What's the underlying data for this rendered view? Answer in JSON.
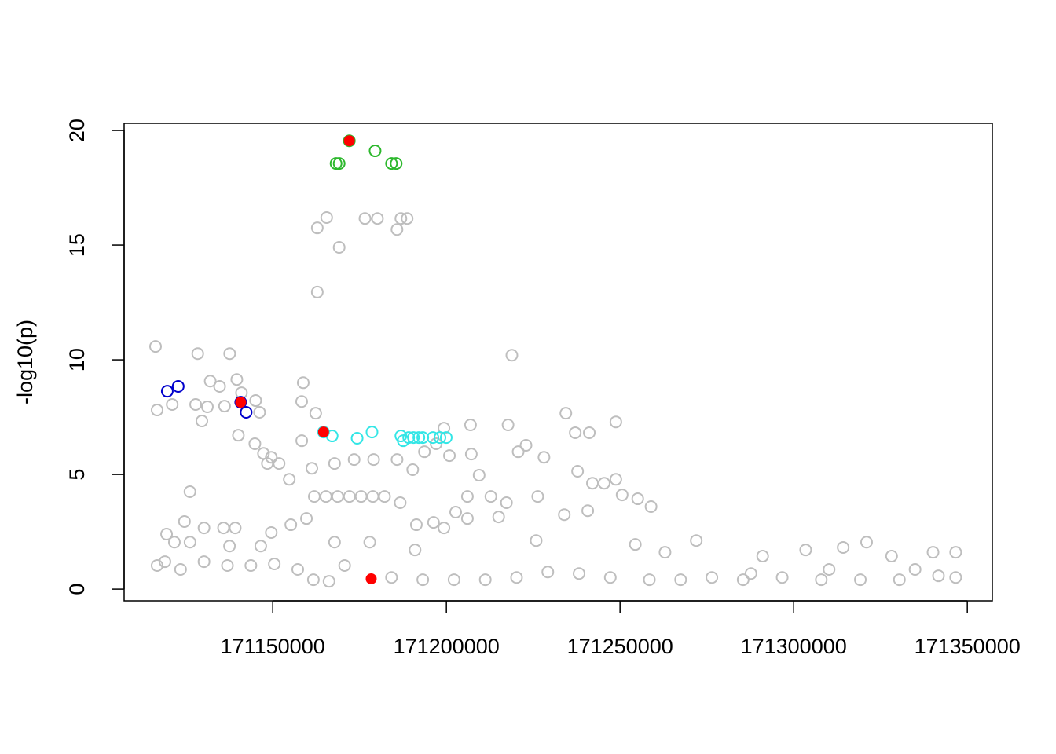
{
  "chart_data": {
    "type": "scatter",
    "ylabel": "-log10(p)",
    "xlim": [
      171107200,
      171357200
    ],
    "ylim": [
      -0.51,
      20.31
    ],
    "xticks": [
      171150000,
      171200000,
      171250000,
      171300000,
      171350000
    ],
    "yticks": [
      0,
      5,
      10,
      15,
      20
    ],
    "series": [
      {
        "color": "#bebebe",
        "filled": false,
        "x": [
          171116250,
          171116700,
          171128400,
          171137600,
          171218850,
          171158775,
          171162825,
          171165525,
          171169125,
          171162825,
          171176550,
          171180150,
          171185775,
          171186900,
          171188700,
          171139650,
          171132000,
          171134700,
          171141000,
          171121050,
          171127800,
          171131175,
          171129600,
          171136125,
          171145075,
          171146200,
          171140100,
          171162375,
          171158325,
          171144850,
          171147325,
          171148450,
          171149575,
          171151825,
          171154750,
          171158350,
          171161275,
          171161950,
          171165325,
          171168700,
          171172075,
          171175450,
          171178825,
          171182200,
          171186700,
          171167800,
          171173425,
          171179050,
          171185800,
          171190300,
          171193675,
          171197050,
          171199300,
          171200875,
          171202675,
          171206050,
          171206950,
          171207175,
          171209425,
          171212800,
          171217300,
          171217750,
          171220675,
          171222925,
          171226300,
          171228100,
          171234400,
          171237100,
          171241150,
          171237775,
          171242050,
          171245425,
          171248800,
          171248800,
          171250600,
          171255100,
          171258925,
          171233950,
          171240700,
          171191350,
          171196300,
          171159700,
          171199300,
          171126150,
          171124575,
          171130200,
          171135825,
          171139200,
          171119425,
          171121675,
          171126175,
          171137550,
          171146550,
          171149575,
          171155200,
          171167800,
          171177925,
          171190975,
          171206050,
          171215050,
          171225850,
          171116700,
          171118950,
          171123450,
          171130200,
          171136950,
          171143700,
          171150450,
          171157200,
          171161700,
          171170700,
          171166200,
          171184200,
          171193200,
          171202200,
          171211200,
          171220200,
          171229200,
          171238200,
          171247200,
          171254400,
          171258450,
          171262950,
          171267450,
          171271950,
          171276450,
          171285450,
          171291075,
          171296700,
          171303450,
          171307950,
          171314250,
          171321000,
          171319200,
          171328200,
          171330450,
          171341700,
          171340125,
          171346650,
          171346650,
          171287700,
          171310200,
          171334950
        ],
        "values": [
          10.58,
          7.81,
          10.27,
          10.27,
          10.2,
          9.0,
          15.75,
          16.2,
          14.9,
          12.95,
          16.16,
          16.16,
          15.68,
          16.16,
          16.16,
          9.14,
          9.07,
          8.84,
          8.56,
          8.05,
          8.05,
          7.95,
          7.33,
          7.98,
          8.22,
          7.71,
          6.71,
          7.67,
          8.18,
          6.34,
          5.92,
          5.48,
          5.75,
          5.48,
          4.79,
          6.47,
          5.27,
          4.04,
          4.04,
          4.04,
          4.04,
          4.04,
          4.04,
          4.04,
          3.77,
          5.48,
          5.65,
          5.65,
          5.65,
          5.21,
          5.99,
          6.34,
          7.02,
          5.82,
          3.36,
          4.04,
          7.16,
          5.89,
          4.97,
          4.04,
          3.77,
          7.16,
          5.99,
          6.27,
          4.04,
          5.75,
          7.67,
          6.82,
          6.82,
          5.14,
          4.62,
          4.62,
          7.29,
          4.79,
          4.11,
          3.94,
          3.6,
          3.25,
          3.42,
          2.81,
          2.91,
          3.08,
          2.67,
          4.25,
          2.95,
          2.67,
          2.67,
          2.67,
          2.4,
          2.05,
          2.05,
          1.88,
          1.88,
          2.47,
          2.81,
          2.05,
          2.05,
          1.71,
          3.08,
          3.15,
          2.12,
          1.03,
          1.2,
          0.86,
          1.2,
          1.03,
          1.03,
          1.1,
          0.86,
          0.41,
          1.03,
          0.34,
          0.51,
          0.41,
          0.41,
          0.41,
          0.51,
          0.75,
          0.68,
          0.51,
          1.95,
          0.41,
          1.61,
          0.41,
          2.12,
          0.51,
          0.41,
          1.44,
          0.51,
          1.71,
          0.41,
          1.82,
          2.05,
          0.41,
          1.44,
          0.41,
          0.58,
          1.61,
          1.61,
          0.51,
          0.68,
          0.86,
          0.86
        ]
      },
      {
        "color": "#33e6e6",
        "filled": false,
        "x": [
          171164625,
          171167100,
          171174300,
          171178575,
          171186900,
          171187575,
          171189150,
          171190500,
          171192075,
          171193200,
          171196125,
          171198150,
          171199950
        ],
        "values": [
          6.85,
          6.68,
          6.58,
          6.85,
          6.68,
          6.47,
          6.61,
          6.61,
          6.61,
          6.61,
          6.61,
          6.61,
          6.61
        ]
      },
      {
        "color": "#0000cc",
        "filled": false,
        "x": [
          171119625,
          171122775,
          171140775,
          171142350
        ],
        "values": [
          8.63,
          8.84,
          8.15,
          7.71
        ]
      },
      {
        "color": "#2db82d",
        "filled": false,
        "x": [
          171172050,
          171168225,
          171169125,
          171179475,
          171184200,
          171185550
        ],
        "values": [
          19.55,
          18.56,
          18.56,
          19.11,
          18.56,
          18.56
        ]
      },
      {
        "color": "#ff0000",
        "filled": true,
        "x": [
          171172050,
          171140775,
          171164625,
          171178350
        ],
        "values": [
          19.55,
          8.15,
          6.85,
          0.45
        ]
      }
    ]
  }
}
